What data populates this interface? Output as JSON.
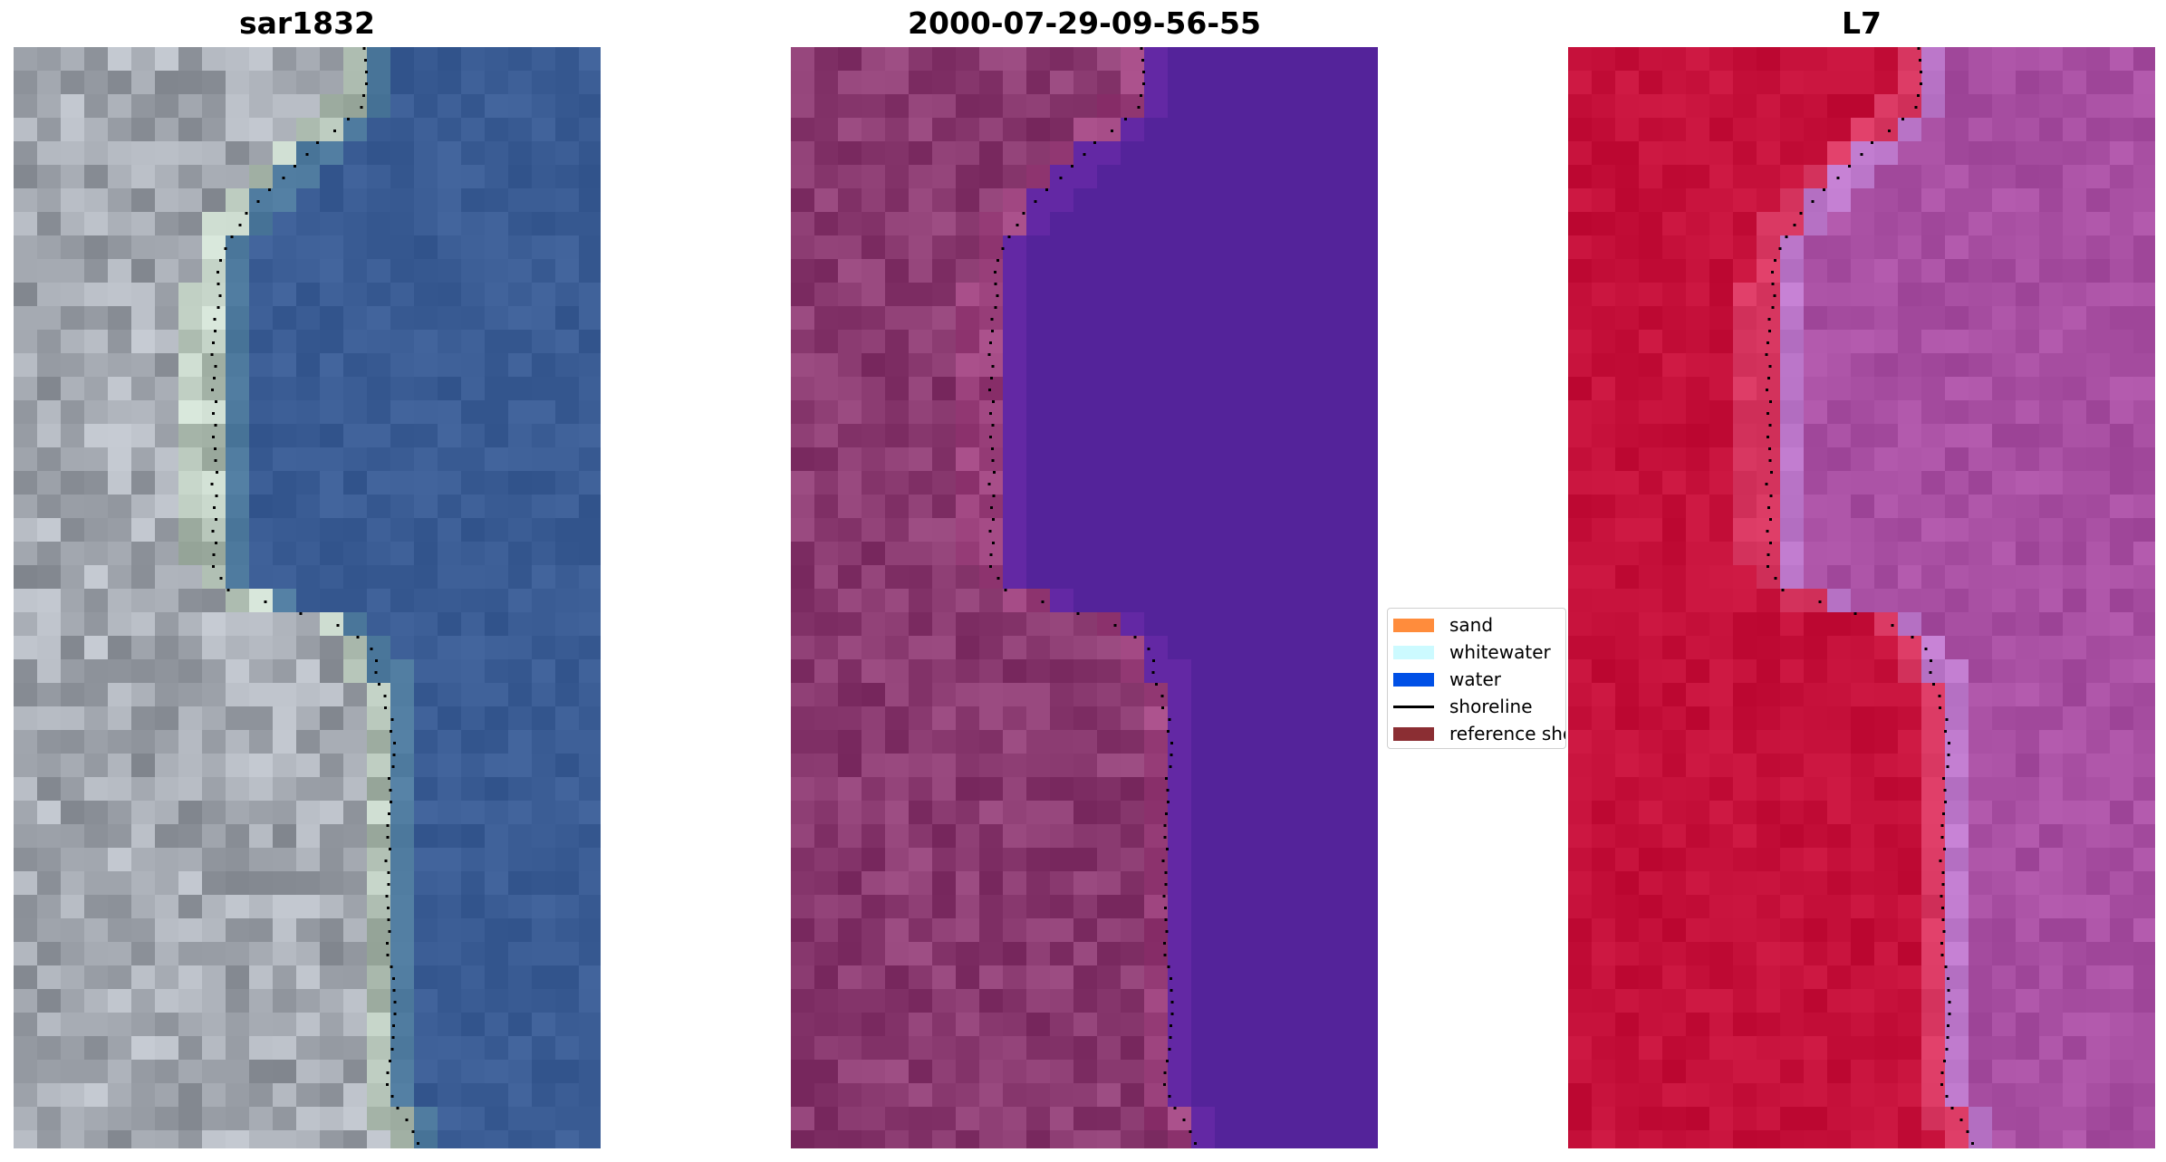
{
  "panels": [
    {
      "title": "sar1832",
      "kind": "rgb"
    },
    {
      "title": "2000-07-29-09-56-55",
      "kind": "classified"
    },
    {
      "title": "L7",
      "kind": "false-color"
    }
  ],
  "legend": {
    "items": [
      {
        "label": "sand",
        "color": "#ff8c3c",
        "type": "patch"
      },
      {
        "label": "whitewater",
        "color": "#ccfaff",
        "type": "patch"
      },
      {
        "label": "water",
        "color": "#0050e6",
        "type": "patch"
      },
      {
        "label": "shoreline",
        "color": "#000000",
        "type": "line"
      },
      {
        "label": "reference shoreline",
        "color": "#8b2e33",
        "type": "patch"
      }
    ]
  },
  "colors": {
    "land_rgb": "#a3a8b0",
    "water_rgb": "#3a5c94",
    "land_classified": "#8a3a70",
    "water_classified": "#54239a",
    "land_false": "#c5103a",
    "water_false": "#a84fa2",
    "shoreline_dots": "#000000"
  }
}
